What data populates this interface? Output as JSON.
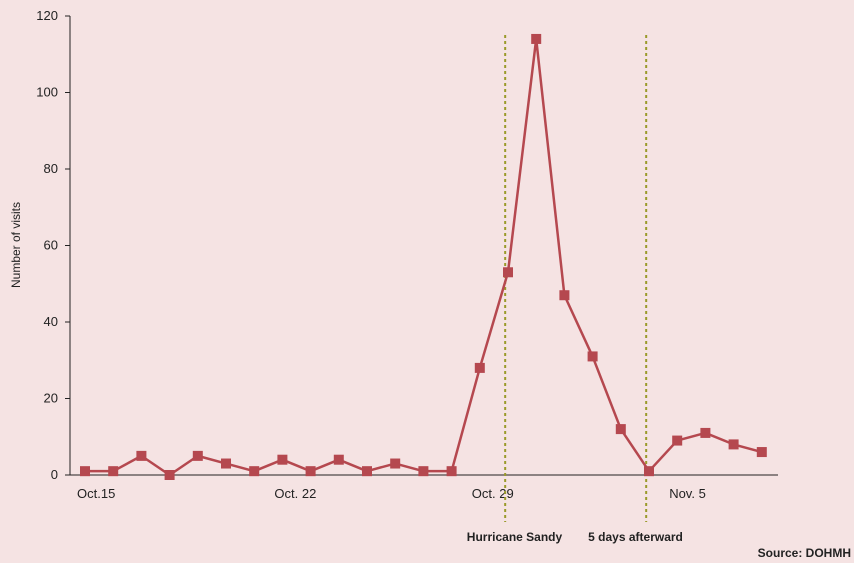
{
  "chart_data": {
    "type": "line",
    "ylabel": "Number of visits",
    "ylim": [
      0,
      120
    ],
    "yticks": [
      0,
      20,
      40,
      60,
      80,
      100,
      120
    ],
    "xtick_labels": [
      {
        "index": 0,
        "label": "Oct.15"
      },
      {
        "index": 7,
        "label": "Oct. 22"
      },
      {
        "index": 14,
        "label": "Oct. 29"
      },
      {
        "index": 21,
        "label": "Nov.  5"
      }
    ],
    "series": [
      {
        "color": "#b5484f",
        "values": [
          1,
          1,
          5,
          0,
          5,
          3,
          1,
          4,
          1,
          4,
          1,
          3,
          1,
          1,
          28,
          53,
          114,
          47,
          31,
          12,
          1,
          9,
          11,
          8,
          6
        ]
      }
    ],
    "annotations": [
      {
        "index": 14.9,
        "label": "Hurricane Sandy",
        "color": "#9a9a2a"
      },
      {
        "index": 19.9,
        "label": "5 days afterward",
        "color": "#9a9a2a"
      }
    ],
    "source": "Source: DOHMH",
    "grid": false
  }
}
